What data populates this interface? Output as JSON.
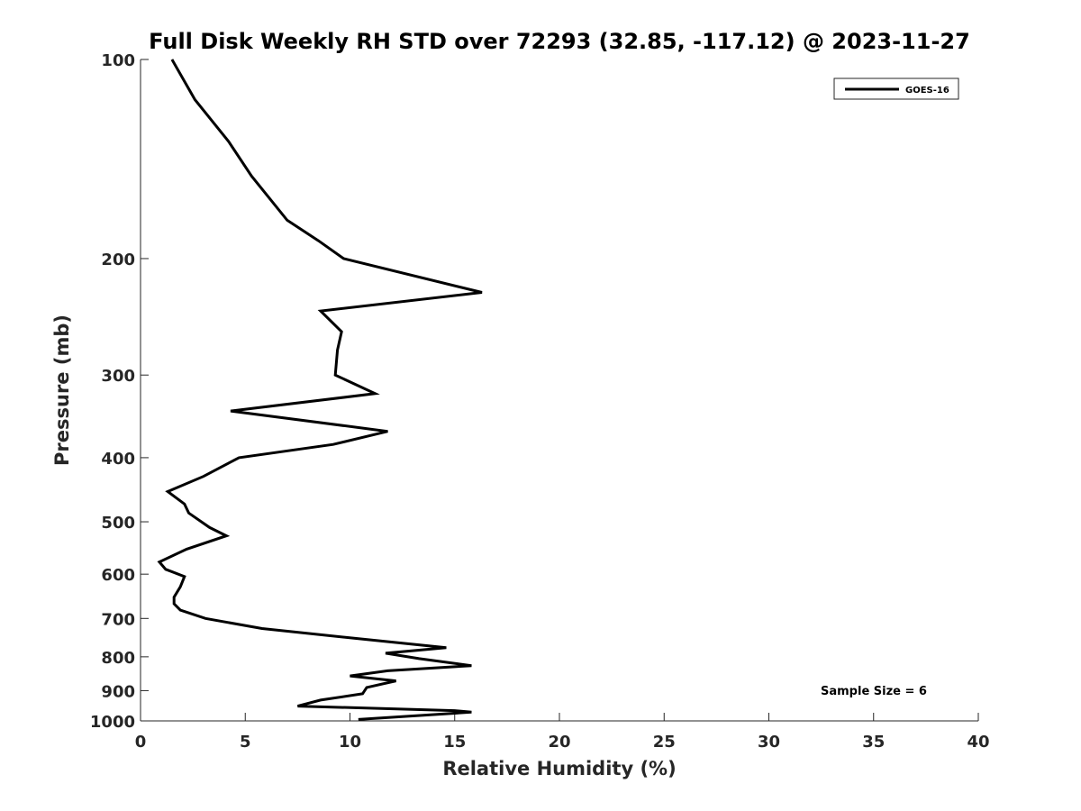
{
  "chart_data": {
    "type": "line",
    "title": "Full Disk Weekly RH STD over 72293 (32.85, -117.12) @ 2023-11-27",
    "xlabel": "Relative Humidity (%)",
    "ylabel": "Pressure (mb)",
    "xlim": [
      0,
      40
    ],
    "ylim": [
      100,
      1000
    ],
    "yscale": "log",
    "y_reversed": true,
    "xticks": [
      0,
      5,
      10,
      15,
      20,
      25,
      30,
      35,
      40
    ],
    "yticks": [
      100,
      200,
      300,
      400,
      500,
      600,
      700,
      800,
      900,
      1000
    ],
    "grid": false,
    "legend": "top-right",
    "annotation": "Sample Size = 6",
    "series": [
      {
        "name": "GOES-16",
        "color": "#000000",
        "x": [
          1.5,
          2.6,
          4.2,
          5.3,
          7.0,
          8.5,
          9.7,
          16.3,
          8.6,
          9.6,
          9.4,
          9.3,
          11.2,
          4.3,
          11.8,
          9.2,
          4.7,
          3.0,
          1.3,
          2.1,
          2.3,
          3.3,
          4.1,
          2.2,
          0.9,
          1.2,
          2.1,
          1.9,
          1.6,
          1.6,
          1.9,
          3.1,
          5.8,
          10.2,
          14.6,
          11.7,
          13.3,
          15.8,
          11.8,
          10.0,
          12.2,
          10.8,
          10.6,
          8.6,
          7.5,
          15.0,
          15.8,
          10.4
        ],
        "y": [
          100,
          115,
          133,
          150,
          175,
          188,
          200,
          225,
          240,
          258,
          275,
          300,
          320,
          340,
          365,
          382,
          400,
          427,
          450,
          470,
          485,
          510,
          525,
          550,
          575,
          590,
          605,
          627,
          650,
          665,
          680,
          700,
          725,
          750,
          775,
          790,
          805,
          825,
          840,
          855,
          870,
          890,
          910,
          930,
          950,
          965,
          970,
          995
        ]
      }
    ]
  }
}
